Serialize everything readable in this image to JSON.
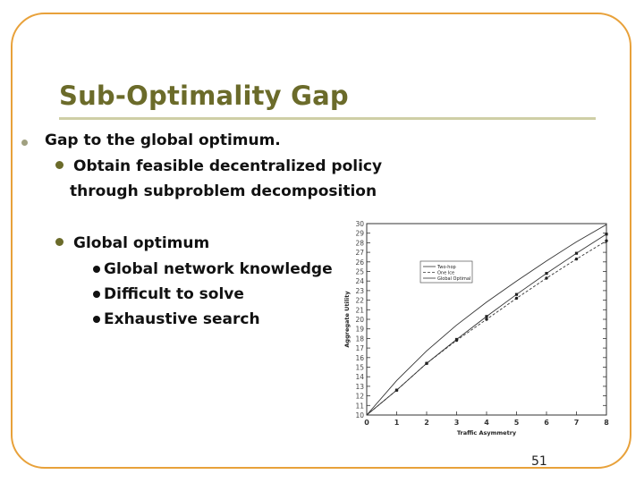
{
  "slide": {
    "title": "Sub-Optimality Gap",
    "number": "51",
    "bullets": {
      "level0": "Gap to the global optimum.",
      "level1": [
        {
          "line1": "Obtain feasible decentralized policy",
          "line2": "through subproblem decomposition"
        },
        {
          "line1": "Global optimum"
        }
      ],
      "level2": [
        "Global network knowledge",
        "Difficult to solve",
        "Exhaustive search"
      ]
    },
    "colors": {
      "frame": "#e8a13a",
      "title": "#6b6b2a",
      "rule": "#cfcfa6"
    }
  },
  "chart_data": {
    "type": "line",
    "xlabel": "Traffic Asymmetry",
    "ylabel": "Aggregate Utility",
    "xlim": [
      0,
      8
    ],
    "ylim": [
      10,
      30
    ],
    "x_ticks": [
      0,
      1,
      2,
      3,
      4,
      5,
      6,
      7,
      8
    ],
    "y_ticks": [
      10,
      11,
      12,
      13,
      14,
      15,
      16,
      17,
      18,
      19,
      20,
      21,
      22,
      23,
      24,
      25,
      26,
      27,
      28,
      29,
      30
    ],
    "x": [
      0,
      1,
      2,
      3,
      4,
      5,
      6,
      7,
      8
    ],
    "legend": "left-upper",
    "grid": false,
    "series": [
      {
        "name": "Two-hop",
        "marker": "square",
        "values": [
          10.0,
          12.6,
          15.4,
          17.9,
          20.3,
          22.6,
          24.8,
          26.9,
          28.9
        ]
      },
      {
        "name": "One Ice",
        "marker": "circle",
        "values": [
          10.0,
          12.6,
          15.4,
          17.8,
          20.0,
          22.2,
          24.3,
          26.3,
          28.2
        ]
      },
      {
        "name": "Global Optimal",
        "marker": "none",
        "values": [
          10.0,
          13.6,
          16.7,
          19.4,
          21.8,
          24.0,
          26.1,
          28.1,
          29.9
        ]
      }
    ]
  }
}
